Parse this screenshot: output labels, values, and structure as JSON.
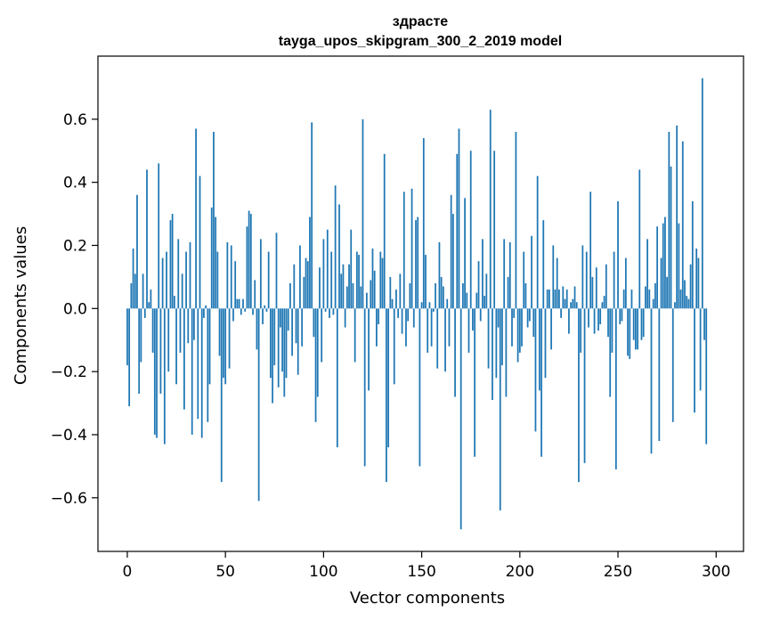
{
  "chart_data": {
    "type": "bar",
    "title": "здрасте",
    "subtitle": "tayga_upos_skipgram_300_2_2019 model",
    "xlabel": "Vector components",
    "ylabel": "Components values",
    "xlim": [
      -14.95,
      313.95
    ],
    "ylim": [
      -0.77,
      0.8
    ],
    "xticks": [
      0,
      50,
      100,
      150,
      200,
      250,
      300
    ],
    "yticks": [
      -0.6,
      -0.4,
      -0.2,
      0.0,
      0.2,
      0.4,
      0.6
    ],
    "xtick_labels": [
      "0",
      "50",
      "100",
      "150",
      "200",
      "250",
      "300"
    ],
    "ytick_labels": [
      "−0.6",
      "−0.4",
      "−0.2",
      "0.0",
      "0.2",
      "0.4",
      "0.6"
    ],
    "bar_color": "#1f77b4",
    "grid": false,
    "values": [
      -0.18,
      -0.31,
      0.08,
      0.19,
      0.11,
      0.36,
      -0.27,
      -0.17,
      0.11,
      -0.03,
      0.44,
      0.02,
      0.06,
      -0.14,
      -0.4,
      -0.41,
      0.46,
      -0.27,
      0.16,
      -0.43,
      0.18,
      -0.2,
      0.28,
      0.3,
      0.04,
      -0.24,
      0.22,
      -0.14,
      0.11,
      -0.32,
      0.18,
      -0.11,
      0.21,
      -0.4,
      -0.1,
      0.57,
      -0.35,
      0.42,
      -0.41,
      -0.03,
      0.01,
      -0.36,
      -0.24,
      0.32,
      0.56,
      0.29,
      0.18,
      -0.15,
      -0.55,
      -0.22,
      -0.24,
      0.21,
      -0.19,
      0.2,
      -0.04,
      0.15,
      0.03,
      0.03,
      -0.02,
      0.03,
      -0.01,
      0.26,
      0.31,
      0.3,
      -0.02,
      0.09,
      -0.13,
      -0.61,
      0.22,
      -0.05,
      0.01,
      -0.01,
      0.18,
      -0.22,
      -0.3,
      -0.18,
      0.24,
      -0.25,
      -0.06,
      -0.2,
      -0.28,
      -0.22,
      -0.07,
      0.08,
      -0.15,
      0.14,
      -0.11,
      -0.21,
      0.2,
      -0.12,
      0.1,
      0.16,
      0.15,
      0.29,
      0.59,
      -0.09,
      -0.36,
      -0.28,
      0.13,
      -0.17,
      0.22,
      -0.01,
      0.25,
      -0.03,
      0.18,
      -0.02,
      0.39,
      -0.44,
      0.33,
      0.11,
      0.14,
      -0.06,
      0.07,
      0.14,
      0.25,
      0.08,
      -0.17,
      0.18,
      0.17,
      0.07,
      0.6,
      -0.5,
      0.05,
      -0.26,
      0.09,
      0.19,
      0.12,
      -0.12,
      -0.05,
      0.18,
      0.16,
      0.49,
      -0.55,
      -0.44,
      0.1,
      0.03,
      -0.24,
      0.06,
      -0.03,
      0.11,
      -0.08,
      0.37,
      -0.12,
      -0.04,
      0.08,
      0.38,
      -0.06,
      0.28,
      0.29,
      -0.5,
      0.02,
      0.54,
      0.17,
      -0.14,
      0.02,
      -0.12,
      -0.01,
      0.08,
      -0.19,
      0.21,
      0.1,
      0.07,
      -0.2,
      0.03,
      -0.12,
      0.36,
      0.3,
      -0.28,
      0.49,
      0.57,
      -0.7,
      0.08,
      0.35,
      0.05,
      -0.14,
      0.5,
      -0.07,
      -0.47,
      0.05,
      0.15,
      -0.04,
      0.22,
      0.04,
      0.11,
      -0.19,
      0.63,
      -0.29,
      0.5,
      -0.22,
      -0.06,
      -0.64,
      -0.18,
      0.22,
      -0.28,
      0.1,
      0.21,
      -0.12,
      -0.03,
      0.56,
      -0.17,
      -0.14,
      -0.12,
      0.18,
      0.08,
      -0.06,
      -0.04,
      0.23,
      -0.09,
      -0.39,
      0.42,
      -0.26,
      -0.47,
      0.28,
      -0.22,
      0.06,
      0.06,
      -0.13,
      0.2,
      0.06,
      0.16,
      0.06,
      -0.03,
      0.07,
      0.03,
      0.06,
      -0.08,
      0.02,
      0.03,
      0.07,
      0.02,
      -0.55,
      -0.14,
      0.2,
      -0.49,
      0.18,
      -0.06,
      0.37,
      0.1,
      -0.08,
      0.13,
      -0.07,
      -0.05,
      0.02,
      0.04,
      0.14,
      -0.09,
      -0.28,
      -0.14,
      0.18,
      -0.51,
      0.34,
      -0.05,
      -0.04,
      0.06,
      0.16,
      -0.15,
      -0.16,
      0.06,
      -0.1,
      -0.13,
      -0.13,
      0.44,
      -0.1,
      -0.09,
      0.07,
      0.22,
      0.06,
      -0.46,
      0.03,
      0.08,
      0.26,
      -0.42,
      0.16,
      0.27,
      0.29,
      0.1,
      0.56,
      0.45,
      -0.36,
      0.02,
      0.58,
      0.27,
      0.06,
      0.53,
      0.09,
      0.04,
      0.03,
      0.14,
      0.34,
      -0.33,
      0.19,
      0.16,
      -0.26,
      0.73,
      -0.1,
      -0.43
    ]
  }
}
